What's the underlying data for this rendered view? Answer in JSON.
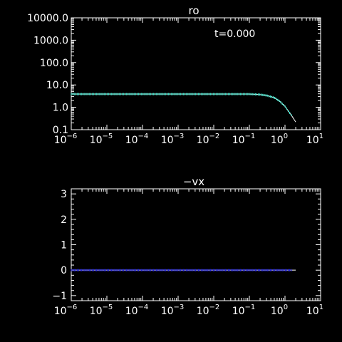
{
  "chart_data": [
    {
      "type": "line",
      "title": "ro",
      "annotation": "t=0.000",
      "x_scale": "log",
      "y_scale": "log",
      "xlim": [
        1e-06,
        10
      ],
      "ylim": [
        0.1,
        10000
      ],
      "x_tick_labels": [
        {
          "base": "10",
          "exp": "−6"
        },
        {
          "base": "10",
          "exp": "−5"
        },
        {
          "base": "10",
          "exp": "−4"
        },
        {
          "base": "10",
          "exp": "−3"
        },
        {
          "base": "10",
          "exp": "−2"
        },
        {
          "base": "10",
          "exp": "−1"
        },
        {
          "base": "10",
          "exp": "0"
        },
        {
          "base": "10",
          "exp": "1"
        }
      ],
      "y_tick_labels": [
        "10000.0",
        "1000.0",
        "100.0",
        "10.0",
        "1.0",
        "0.1"
      ],
      "grid": false,
      "colors": {
        "line": "#ffffff",
        "markers": "#40e0c8"
      },
      "series": [
        {
          "x": [
            1e-06,
            0.0001,
            0.01,
            0.1,
            0.2,
            0.3,
            0.5,
            0.7,
            1.0,
            1.5,
            2.0
          ],
          "values": [
            3.9,
            3.9,
            3.9,
            3.9,
            3.7,
            3.4,
            2.7,
            1.9,
            1.1,
            0.45,
            0.22
          ]
        }
      ]
    },
    {
      "type": "line",
      "title": "−vx",
      "x_scale": "log",
      "y_scale": "linear",
      "xlim": [
        1e-06,
        10
      ],
      "ylim": [
        -1.2,
        3.2
      ],
      "x_tick_labels": [
        {
          "base": "10",
          "exp": "−6"
        },
        {
          "base": "10",
          "exp": "−5"
        },
        {
          "base": "10",
          "exp": "−4"
        },
        {
          "base": "10",
          "exp": "−3"
        },
        {
          "base": "10",
          "exp": "−2"
        },
        {
          "base": "10",
          "exp": "−1"
        },
        {
          "base": "10",
          "exp": "0"
        },
        {
          "base": "10",
          "exp": "1"
        }
      ],
      "y_tick_labels": [
        "3",
        "2",
        "1",
        "0",
        "−1"
      ],
      "grid": false,
      "colors": {
        "line": "#ffffff",
        "markers": "#2020e0"
      },
      "series": [
        {
          "x": [
            1e-06,
            0.001,
            0.1,
            1.0,
            2.0
          ],
          "values": [
            0,
            0,
            0,
            0,
            0
          ]
        }
      ]
    }
  ]
}
